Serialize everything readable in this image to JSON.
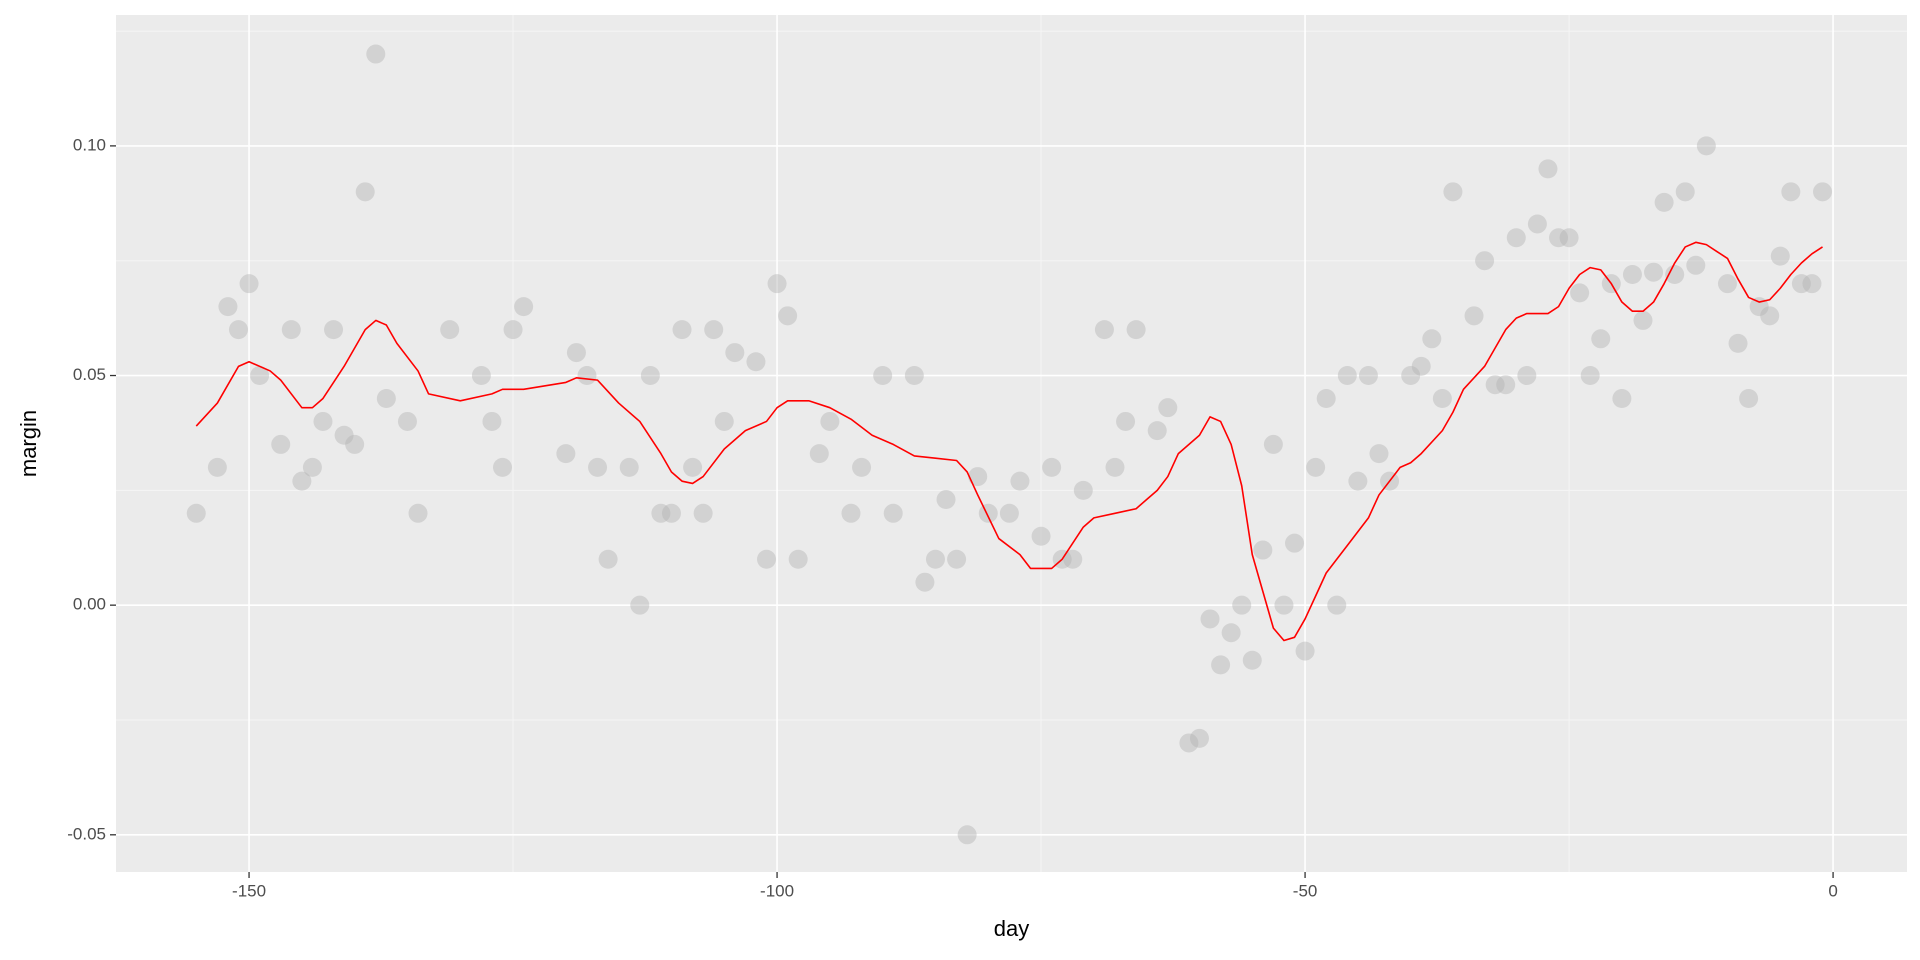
{
  "chart_data": {
    "type": "scatter",
    "x_label": "day",
    "y_label": "margin",
    "xlim": [
      -162.6,
      7
    ],
    "ylim": [
      -0.0581,
      0.1285
    ],
    "xticks": [
      -150,
      -100,
      -50,
      0
    ],
    "yticks": [
      {
        "value": -0.05,
        "label": "-0.05"
      },
      {
        "value": 0,
        "label": "0.00"
      },
      {
        "value": 0.05,
        "label": "0.05"
      },
      {
        "value": 0.1,
        "label": "0.10"
      }
    ],
    "grid": true,
    "series": [
      {
        "mark": "point",
        "color": "#b3b3b3",
        "x": [
          -155,
          -153,
          -152,
          -151,
          -150,
          -149,
          -147,
          -146,
          -145,
          -144,
          -143,
          -142,
          -141,
          -140,
          -139,
          -138,
          -137,
          -135,
          -134,
          -131,
          -128,
          -127,
          -126,
          -125,
          -124,
          -120,
          -119,
          -118,
          -117,
          -116,
          -114,
          -113,
          -112,
          -111,
          -110,
          -109,
          -108,
          -107,
          -106,
          -105,
          -104,
          -102,
          -101,
          -100,
          -99,
          -98,
          -96,
          -95,
          -93,
          -92,
          -90,
          -89,
          -87,
          -86,
          -85,
          -84,
          -83,
          -82,
          -81,
          -80,
          -78,
          -77,
          -75,
          -74,
          -73,
          -72,
          -71,
          -69,
          -68,
          -67,
          -66,
          -64,
          -63,
          -61,
          -60,
          -59,
          -58,
          -57,
          -56,
          -55,
          -54,
          -53,
          -52,
          -51,
          -50,
          -49,
          -48,
          -47,
          -46,
          -45,
          -44,
          -43,
          -42,
          -40,
          -39,
          -38,
          -37,
          -36,
          -34,
          -33,
          -32,
          -31,
          -30,
          -29,
          -28,
          -27,
          -26,
          -25,
          -24,
          -23,
          -22,
          -21,
          -20,
          -19,
          -18,
          -17,
          -16,
          -15,
          -14,
          -13,
          -12,
          -10,
          -9,
          -8,
          -7,
          -6,
          -5,
          -4,
          -3,
          -2,
          -1
        ],
        "values": [
          0.02,
          0.03,
          0.065,
          0.06,
          0.07,
          0.05,
          0.035,
          0.06,
          0.027,
          0.03,
          0.04,
          0.06,
          0.037,
          0.035,
          0.09,
          0.12,
          0.045,
          0.04,
          0.02,
          0.06,
          0.05,
          0.04,
          0.03,
          0.06,
          0.065,
          0.033,
          0.055,
          0.05,
          0.03,
          0.01,
          0.03,
          0,
          0.05,
          0.02,
          0.02,
          0.06,
          0.03,
          0.02,
          0.06,
          0.04,
          0.055,
          0.053,
          0.01,
          0.07,
          0.063,
          0.01,
          0.033,
          0.04,
          0.02,
          0.03,
          0.05,
          0.02,
          0.05,
          0.005,
          0.01,
          0.023,
          0.01,
          -0.05,
          0.028,
          0.02,
          0.02,
          0.027,
          0.015,
          0.03,
          0.01,
          0.01,
          0.025,
          0.06,
          0.03,
          0.04,
          0.06,
          0.038,
          0.043,
          -0.03,
          -0.029,
          -0.003,
          -0.013,
          -0.006,
          0,
          -0.012,
          0.012,
          0.035,
          0,
          0.0135,
          -0.01,
          0.03,
          0.045,
          0,
          0.05,
          0.027,
          0.05,
          0.033,
          0.027,
          0.05,
          0.052,
          0.058,
          0.045,
          0.09,
          0.063,
          0.075,
          0.048,
          0.048,
          0.08,
          0.05,
          0.083,
          0.095,
          0.08,
          0.08,
          0.068,
          0.05,
          0.058,
          0.07,
          0.045,
          0.072,
          0.062,
          0.0725,
          0.0877,
          0.072,
          0.09,
          0.074,
          0.1,
          0.07,
          0.057,
          0.045,
          0.065,
          0.063,
          0.076,
          0.09,
          0.07,
          0.07,
          0.09
        ]
      },
      {
        "mark": "line",
        "color": "#ff0000",
        "x": [
          -155,
          -153,
          -151,
          -150,
          -148,
          -147,
          -145,
          -144,
          -143,
          -141,
          -139,
          -138,
          -137,
          -136,
          -134,
          -133,
          -130,
          -127,
          -126,
          -124,
          -120,
          -119,
          -117,
          -115,
          -113,
          -111,
          -110,
          -109,
          -108,
          -107,
          -105,
          -103,
          -101,
          -100,
          -99,
          -97,
          -95,
          -93,
          -91,
          -89,
          -87,
          -85,
          -83,
          -82,
          -81,
          -79,
          -77,
          -76,
          -74,
          -73,
          -71,
          -70,
          -68,
          -66,
          -65,
          -64,
          -63,
          -62,
          -60,
          -59,
          -58,
          -57,
          -56,
          -55,
          -54,
          -53,
          -52,
          -51,
          -50,
          -49,
          -48,
          -46,
          -44,
          -43,
          -41,
          -40,
          -39,
          -37,
          -36,
          -35,
          -33,
          -32,
          -31,
          -30,
          -29,
          -27,
          -26,
          -25,
          -24,
          -23,
          -22,
          -21,
          -20,
          -19,
          -18,
          -17,
          -16,
          -15,
          -14,
          -13,
          -12,
          -11,
          -10,
          -9,
          -8,
          -7,
          -6,
          -5,
          -4,
          -3,
          -2,
          -1
        ],
        "values": [
          0.039,
          0.044,
          0.052,
          0.053,
          0.051,
          0.049,
          0.043,
          0.043,
          0.045,
          0.052,
          0.06,
          0.062,
          0.061,
          0.057,
          0.051,
          0.046,
          0.0445,
          0.046,
          0.047,
          0.047,
          0.0485,
          0.0495,
          0.049,
          0.044,
          0.04,
          0.033,
          0.029,
          0.027,
          0.0265,
          0.028,
          0.034,
          0.038,
          0.04,
          0.043,
          0.0445,
          0.0445,
          0.043,
          0.0405,
          0.037,
          0.035,
          0.0325,
          0.032,
          0.0315,
          0.029,
          0.024,
          0.0145,
          0.011,
          0.008,
          0.008,
          0.01,
          0.017,
          0.019,
          0.02,
          0.021,
          0.023,
          0.025,
          0.028,
          0.033,
          0.037,
          0.041,
          0.04,
          0.035,
          0.026,
          0.011,
          0.003,
          -0.005,
          -0.0077,
          -0.007,
          -0.003,
          0.002,
          0.007,
          0.013,
          0.019,
          0.024,
          0.03,
          0.031,
          0.033,
          0.038,
          0.042,
          0.047,
          0.052,
          0.056,
          0.06,
          0.0625,
          0.0635,
          0.0635,
          0.065,
          0.069,
          0.072,
          0.0735,
          0.073,
          0.07,
          0.066,
          0.064,
          0.064,
          0.066,
          0.07,
          0.0745,
          0.078,
          0.079,
          0.0785,
          0.077,
          0.0755,
          0.071,
          0.067,
          0.066,
          0.0665,
          0.069,
          0.072,
          0.0745,
          0.0765,
          0.078
        ]
      }
    ]
  }
}
